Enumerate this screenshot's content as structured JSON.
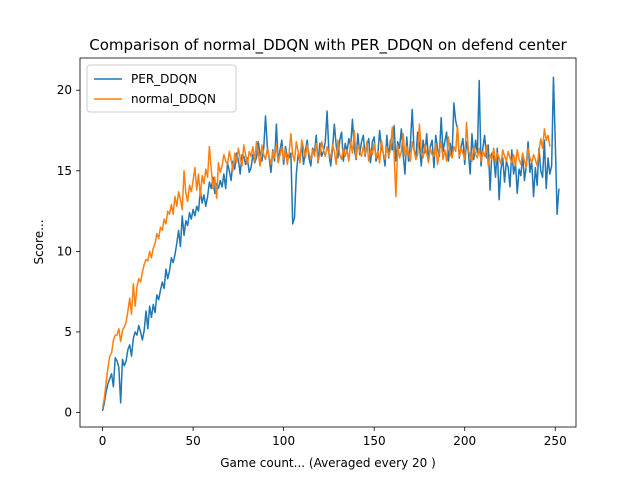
{
  "chart_data": {
    "type": "line",
    "title": "Comparison of normal_DDQN with PER_DDQN on defend center",
    "xlabel": "Game count... (Averaged every 20 )",
    "ylabel": "Score...",
    "xlim": [
      -12.45,
      261.45
    ],
    "ylim": [
      -0.9,
      22.0
    ],
    "xticks": [
      0,
      50,
      100,
      150,
      200,
      250
    ],
    "yticks": [
      0,
      5,
      10,
      15,
      20
    ],
    "grid": false,
    "legend_position": "upper-left",
    "series": [
      {
        "name": "PER_DDQN",
        "color": "#1f77b4",
        "x_start": 0,
        "x_step": 1,
        "values": [
          0.1,
          0.6,
          1.3,
          1.8,
          2.1,
          2.4,
          1.6,
          3.4,
          3.2,
          2.8,
          0.6,
          3.3,
          2.9,
          3.2,
          3.9,
          4.2,
          3.5,
          4.6,
          5.0,
          4.8,
          5.4,
          5.0,
          4.5,
          5.1,
          6.3,
          5.2,
          6.6,
          5.9,
          6.7,
          6.2,
          7.3,
          7.0,
          7.6,
          8.1,
          7.7,
          8.9,
          8.3,
          8.8,
          9.6,
          9.3,
          9.8,
          10.5,
          11.3,
          10.3,
          12.2,
          11.0,
          11.9,
          11.6,
          12.4,
          12.0,
          12.6,
          12.2,
          12.8,
          12.5,
          13.8,
          13.0,
          13.5,
          12.8,
          13.4,
          14.3,
          13.9,
          14.6,
          13.6,
          14.2,
          13.9,
          14.4,
          14.0,
          14.8,
          13.9,
          15.5,
          15.0,
          14.4,
          15.6,
          15.1,
          16.1,
          15.7,
          14.8,
          16.0,
          15.9,
          15.4,
          15.8,
          14.9,
          15.2,
          16.0,
          15.5,
          15.8,
          16.8,
          16.0,
          15.6,
          16.4,
          18.4,
          16.5,
          15.8,
          14.9,
          16.3,
          15.6,
          17.9,
          15.5,
          16.3,
          16.9,
          15.4,
          16.5,
          15.9,
          15.8,
          16.1,
          11.7,
          12.1,
          14.8,
          16.0,
          15.6,
          16.7,
          15.4,
          16.2,
          16.9,
          15.8,
          15.3,
          16.4,
          16.1,
          17.2,
          15.5,
          16.7,
          15.9,
          16.2,
          16.8,
          18.7,
          16.1,
          15.3,
          16.4,
          17.9,
          16.6,
          15.8,
          16.9,
          17.4,
          15.6,
          16.7,
          16.2,
          17.0,
          16.5,
          18.2,
          16.4,
          15.7,
          17.3,
          16.0,
          16.8,
          17.2,
          15.9,
          16.6,
          17.0,
          15.5,
          16.8,
          17.1,
          15.6,
          16.0,
          17.5,
          16.4,
          16.1,
          15.3,
          17.2,
          15.8,
          16.9,
          16.3,
          17.8,
          15.6,
          16.8,
          16.4,
          17.6,
          16.0,
          14.8,
          17.1,
          15.6,
          16.7,
          18.8,
          16.3,
          15.8,
          17.4,
          16.6,
          15.3,
          16.9,
          16.1,
          17.3,
          15.7,
          16.5,
          16.9,
          15.2,
          17.2,
          16.4,
          15.9,
          18.3,
          16.2,
          16.8,
          17.4,
          15.6,
          16.7,
          15.9,
          19.2,
          18.1,
          17.6,
          15.8,
          16.5,
          17.0,
          15.4,
          16.8,
          16.2,
          14.8,
          17.3,
          15.7,
          16.9,
          16.1,
          20.6,
          15.3,
          16.4,
          17.2,
          15.8,
          16.6,
          13.8,
          16.1,
          15.9,
          14.6,
          16.4,
          13.2,
          15.1,
          15.8,
          14.3,
          15.6,
          15.2,
          14.0,
          16.3,
          14.8,
          15.5,
          13.6,
          15.1,
          14.7,
          16.0,
          14.4,
          15.3,
          16.8,
          14.9,
          15.6,
          13.4,
          15.2,
          14.1,
          16.4,
          15.0,
          14.6,
          16.9,
          13.9,
          15.8,
          14.8,
          15.3,
          20.8,
          16.8,
          12.3,
          13.9
        ]
      },
      {
        "name": "normal_DDQN",
        "color": "#ff7f0e",
        "x_start": 0,
        "x_step": 1,
        "values": [
          0.3,
          0.9,
          1.9,
          2.8,
          3.5,
          3.7,
          4.5,
          4.8,
          4.8,
          5.2,
          4.4,
          5.1,
          5.3,
          5.6,
          6.3,
          7.1,
          6.1,
          8.0,
          6.6,
          7.8,
          8.3,
          8.1,
          8.7,
          9.2,
          9.5,
          9.4,
          10.0,
          9.6,
          10.2,
          10.5,
          11.1,
          10.8,
          11.5,
          11.3,
          12.0,
          11.7,
          12.5,
          12.3,
          12.9,
          12.3,
          13.4,
          12.8,
          13.7,
          13.2,
          12.6,
          15.0,
          13.6,
          13.1,
          14.1,
          13.7,
          14.4,
          15.2,
          13.8,
          14.8,
          13.4,
          14.7,
          14.2,
          15.1,
          14.6,
          16.5,
          15.1,
          13.9,
          14.6,
          13.3,
          15.5,
          14.9,
          15.3,
          16.0,
          15.6,
          15.4,
          16.2,
          15.7,
          15.0,
          16.1,
          15.5,
          16.4,
          15.8,
          15.3,
          16.6,
          16.0,
          15.4,
          16.2,
          15.9,
          16.5,
          15.6,
          16.8,
          16.1,
          15.3,
          16.6,
          16.0,
          15.7,
          16.4,
          15.9,
          15.4,
          16.2,
          15.8,
          16.6,
          15.5,
          16.0,
          16.5,
          15.7,
          16.3,
          15.4,
          16.1,
          17.3,
          16.0,
          15.6,
          16.8,
          16.2,
          15.5,
          16.9,
          16.4,
          15.8,
          16.6,
          16.1,
          15.7,
          16.3,
          15.9,
          16.7,
          15.6,
          16.0,
          16.8,
          16.3,
          15.9,
          16.5,
          16.1,
          15.8,
          16.6,
          16.2,
          15.4,
          16.9,
          16.0,
          15.7,
          16.4,
          15.9,
          16.3,
          15.6,
          16.8,
          16.1,
          17.5,
          15.8,
          16.6,
          16.2,
          15.9,
          16.5,
          16.0,
          16.8,
          15.6,
          16.3,
          16.0,
          16.7,
          15.8,
          16.2,
          15.5,
          16.9,
          16.1,
          15.7,
          16.5,
          15.9,
          16.3,
          17.7,
          16.0,
          13.4,
          16.6,
          15.8,
          16.2,
          17.3,
          15.9,
          16.5,
          16.1,
          15.6,
          16.8,
          16.3,
          15.7,
          16.0,
          17.9,
          16.2,
          15.8,
          16.6,
          16.1,
          15.5,
          16.4,
          16.0,
          15.9,
          16.7,
          15.4,
          16.2,
          16.8,
          15.7,
          16.3,
          15.6,
          17.1,
          16.0,
          15.8,
          16.5,
          16.2,
          17.8,
          15.9,
          16.4,
          16.1,
          15.7,
          18.0,
          16.3,
          15.9,
          15.6,
          16.5,
          16.0,
          15.8,
          16.4,
          15.6,
          16.2,
          15.9,
          16.6,
          15.3,
          16.0,
          15.7,
          16.4,
          15.5,
          16.1,
          15.8,
          15.4,
          16.3,
          15.9,
          15.6,
          16.2,
          15.8,
          15.5,
          16.0,
          15.3,
          16.3,
          15.7,
          15.4,
          16.1,
          15.6,
          15.2,
          16.4,
          15.8,
          15.5,
          16.0,
          15.7,
          15.3,
          16.2,
          17.0,
          16.4,
          17.6,
          16.9,
          17.2,
          16.5
        ]
      }
    ]
  }
}
